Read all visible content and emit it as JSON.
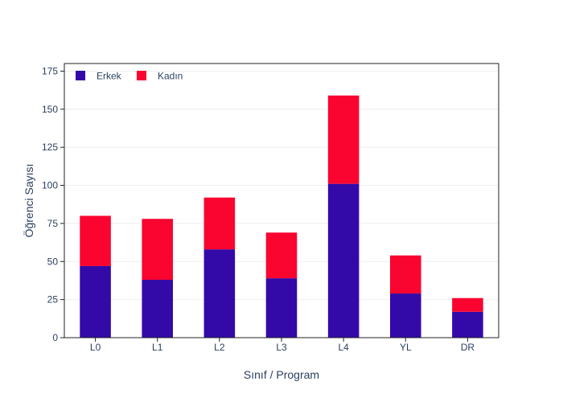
{
  "chart_data": {
    "type": "bar",
    "stacked": true,
    "categories": [
      "L0",
      "L1",
      "L2",
      "L3",
      "L4",
      "YL",
      "DR"
    ],
    "series": [
      {
        "name": "Erkek",
        "values": [
          47,
          38,
          58,
          39,
          101,
          29,
          17
        ],
        "color": "#330aa8"
      },
      {
        "name": "Kadın",
        "values": [
          33,
          40,
          34,
          30,
          58,
          25,
          9
        ],
        "color": "#fa0530"
      }
    ],
    "xlabel": "Sınıf / Program",
    "ylabel": "Öğrenci Sayısı",
    "ylim": [
      0,
      180
    ],
    "yticks": [
      0,
      25,
      50,
      75,
      100,
      125,
      150,
      175
    ],
    "grid": true,
    "legend_position": "top-left"
  }
}
